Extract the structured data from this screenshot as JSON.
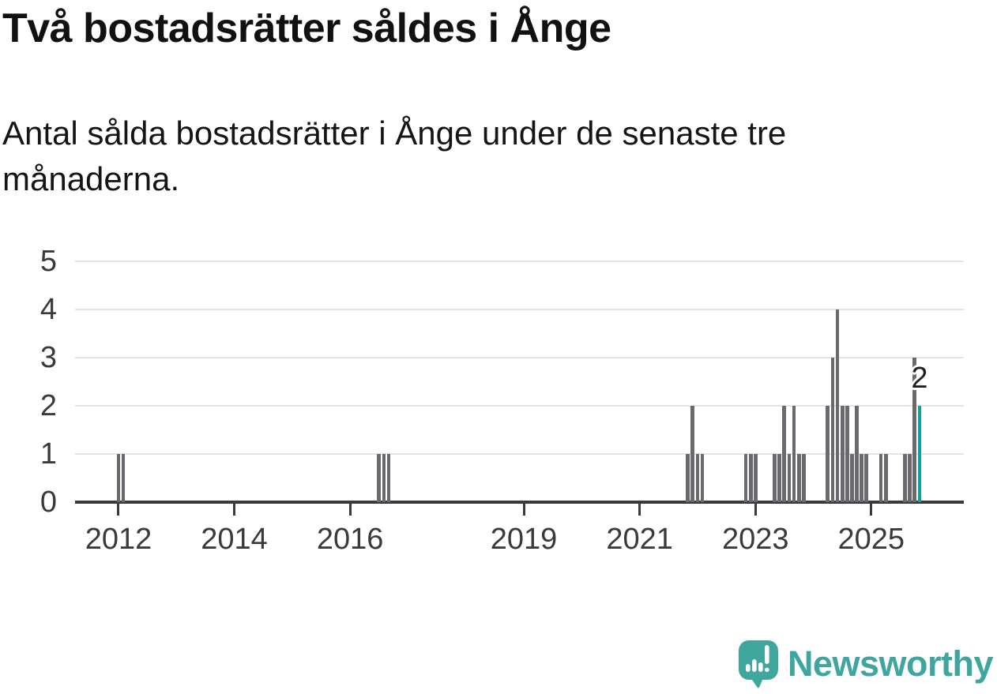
{
  "title": "Två bostadsrätter såldes i Ånge",
  "subtitle": "Antal sålda bostadsrätter i Ånge under de senaste tre månaderna.",
  "branding": {
    "logo_text": "Newsworthy",
    "icon": "newsworthy-speech-bubble-bar-chart-icon"
  },
  "colors": {
    "bar": "#6a6a6e",
    "highlight": "#0fa29d",
    "axis": "#3a3a3a",
    "grid": "#e4e4e4",
    "tick_label": "#3a3a3a",
    "title_text": "#111111",
    "logo": "#3ea69e",
    "value_label": "#1f1f1f"
  },
  "chart_data": {
    "type": "bar",
    "title": "Två bostadsrätter såldes i Ånge",
    "subtitle": "Antal sålda bostadsrätter i Ånge under de senaste tre månaderna.",
    "xlabel": "",
    "ylabel": "",
    "ylim": [
      0,
      5
    ],
    "yticks": [
      0,
      1,
      2,
      3,
      4,
      5
    ],
    "xtick_years": [
      2012,
      2014,
      2016,
      2019,
      2021,
      2023,
      2025
    ],
    "x_start": "2011-04",
    "x_end": "2026-08",
    "grid": true,
    "legend": false,
    "points": [
      {
        "month": "2012-01",
        "value": 1
      },
      {
        "month": "2012-02",
        "value": 1
      },
      {
        "month": "2016-07",
        "value": 1
      },
      {
        "month": "2016-08",
        "value": 1
      },
      {
        "month": "2016-09",
        "value": 1
      },
      {
        "month": "2021-11",
        "value": 1
      },
      {
        "month": "2021-12",
        "value": 2
      },
      {
        "month": "2022-01",
        "value": 1
      },
      {
        "month": "2022-02",
        "value": 1
      },
      {
        "month": "2022-11",
        "value": 1
      },
      {
        "month": "2022-12",
        "value": 1
      },
      {
        "month": "2023-01",
        "value": 1
      },
      {
        "month": "2023-05",
        "value": 1
      },
      {
        "month": "2023-06",
        "value": 1
      },
      {
        "month": "2023-07",
        "value": 2
      },
      {
        "month": "2023-08",
        "value": 1
      },
      {
        "month": "2023-09",
        "value": 2
      },
      {
        "month": "2023-10",
        "value": 1
      },
      {
        "month": "2023-11",
        "value": 1
      },
      {
        "month": "2024-04",
        "value": 2
      },
      {
        "month": "2024-05",
        "value": 3
      },
      {
        "month": "2024-06",
        "value": 4
      },
      {
        "month": "2024-07",
        "value": 2
      },
      {
        "month": "2024-08",
        "value": 2
      },
      {
        "month": "2024-09",
        "value": 1
      },
      {
        "month": "2024-10",
        "value": 2
      },
      {
        "month": "2024-11",
        "value": 1
      },
      {
        "month": "2024-12",
        "value": 1
      },
      {
        "month": "2025-03",
        "value": 1
      },
      {
        "month": "2025-04",
        "value": 1
      },
      {
        "month": "2025-08",
        "value": 1
      },
      {
        "month": "2025-09",
        "value": 1
      },
      {
        "month": "2025-10",
        "value": 3
      },
      {
        "month": "2025-11",
        "value": 2
      }
    ],
    "highlight": {
      "month": "2025-11",
      "value": 2,
      "label": "2"
    }
  }
}
